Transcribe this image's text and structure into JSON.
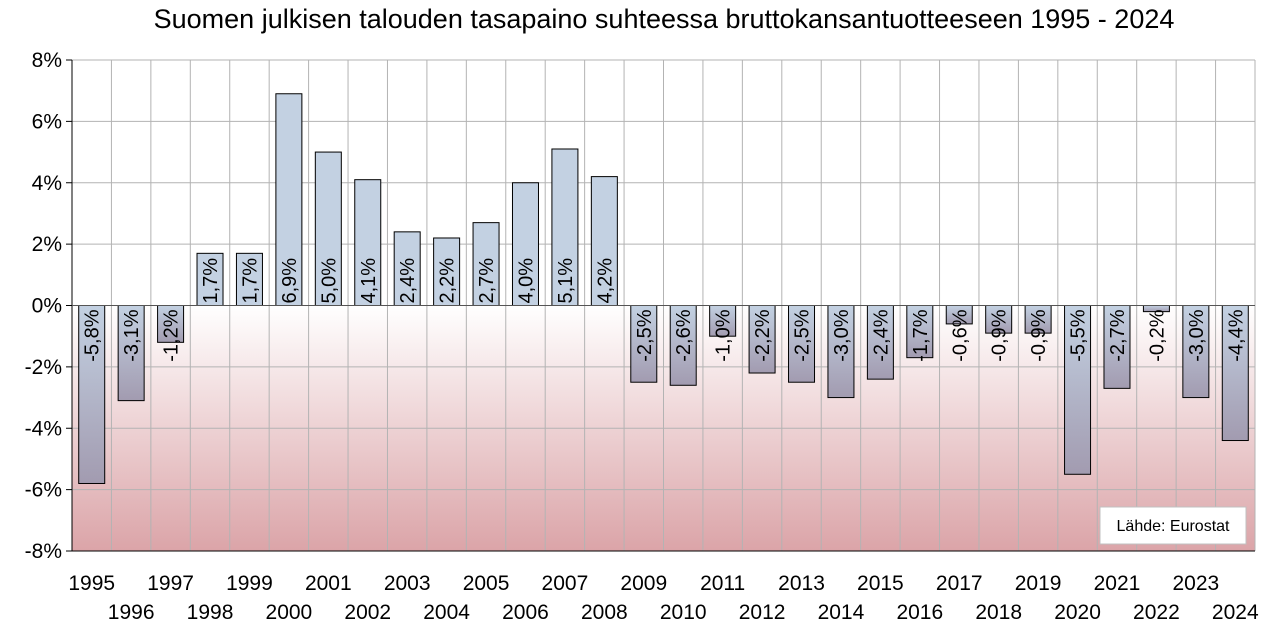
{
  "chart_data": {
    "type": "bar",
    "title": "Suomen julkisen talouden tasapaino suhteessa bruttokansantuotteeseen 1995 - 2024",
    "xlabel": "",
    "ylabel": "",
    "ylim": [
      -8,
      8
    ],
    "yticks": [
      8,
      6,
      4,
      2,
      0,
      -2,
      -4,
      -6,
      -8
    ],
    "ytick_labels": [
      "8%",
      "6%",
      "4%",
      "2%",
      "0%",
      "-2%",
      "-4%",
      "-6%",
      "-8%"
    ],
    "categories": [
      "1995",
      "1996",
      "1997",
      "1998",
      "1999",
      "2000",
      "2001",
      "2002",
      "2003",
      "2004",
      "2005",
      "2006",
      "2007",
      "2008",
      "2009",
      "2010",
      "2011",
      "2012",
      "2013",
      "2014",
      "2015",
      "2016",
      "2017",
      "2018",
      "2019",
      "2020",
      "2021",
      "2022",
      "2023",
      "2024"
    ],
    "values": [
      -5.8,
      -3.1,
      -1.2,
      1.7,
      1.7,
      6.9,
      5.0,
      4.1,
      2.4,
      2.2,
      2.7,
      4.0,
      5.1,
      4.2,
      -2.5,
      -2.6,
      -1.0,
      -2.2,
      -2.5,
      -3.0,
      -2.4,
      -1.7,
      -0.6,
      -0.9,
      -0.9,
      -5.5,
      -2.7,
      -0.2,
      -3.0,
      -4.4
    ],
    "data_labels": [
      "-5,8%",
      "-3,1%",
      "-1,2%",
      "1,7%",
      "1,7%",
      "6,9%",
      "5,0%",
      "4,1%",
      "2,4%",
      "2,2%",
      "2,7%",
      "4,0%",
      "5,1%",
      "4,2%",
      "-2,5%",
      "-2,6%",
      "-1,0%",
      "-2,2%",
      "-2,5%",
      "-3,0%",
      "-2,4%",
      "-1,7%",
      "-0,6%",
      "-0,9%",
      "-0,9%",
      "-5,5%",
      "-2,7%",
      "-0,2%",
      "-3,0%",
      "-4,4%"
    ],
    "grid": true,
    "legend": "none",
    "source_note": "Lähde: Eurostat",
    "colors": {
      "bar_fill": "#c3d1e2",
      "bar_stroke": "#000000",
      "neg_bg_top": "#ffffff",
      "neg_bg_bottom": "#dba4a8",
      "grid": "#b3b3b3",
      "axis": "#000000"
    }
  }
}
